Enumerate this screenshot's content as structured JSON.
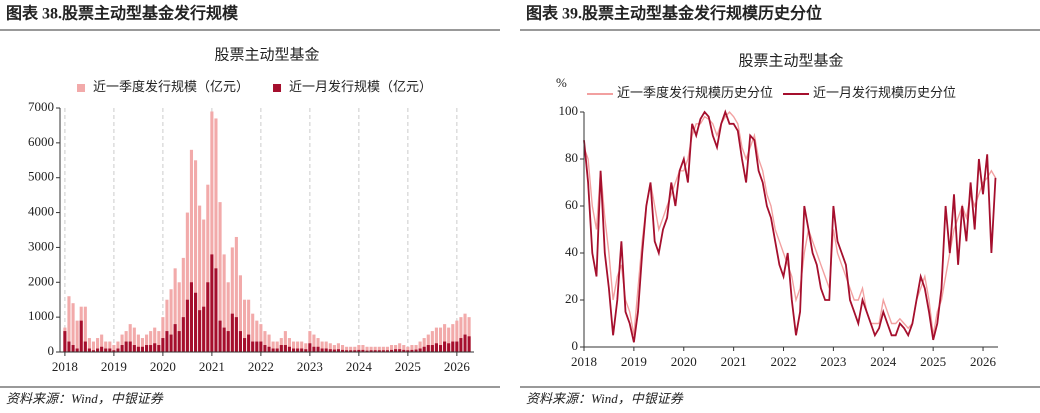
{
  "chart_data": [
    {
      "type": "bar",
      "figure_title": "图表 38.股票主动型基金发行规模",
      "title": "股票主动型基金",
      "source": "资料来源：Wind，中银证券",
      "x": [
        2018,
        2018.083,
        2018.167,
        2018.25,
        2018.333,
        2018.417,
        2018.5,
        2018.583,
        2018.667,
        2018.75,
        2018.833,
        2018.917,
        2019,
        2019.083,
        2019.167,
        2019.25,
        2019.333,
        2019.417,
        2019.5,
        2019.583,
        2019.667,
        2019.75,
        2019.833,
        2019.917,
        2020,
        2020.083,
        2020.167,
        2020.25,
        2020.333,
        2020.417,
        2020.5,
        2020.583,
        2020.667,
        2020.75,
        2020.833,
        2020.917,
        2021,
        2021.083,
        2021.167,
        2021.25,
        2021.333,
        2021.417,
        2021.5,
        2021.583,
        2021.667,
        2021.75,
        2021.833,
        2021.917,
        2022,
        2022.083,
        2022.167,
        2022.25,
        2022.333,
        2022.417,
        2022.5,
        2022.583,
        2022.667,
        2022.75,
        2022.833,
        2022.917,
        2023,
        2023.083,
        2023.167,
        2023.25,
        2023.333,
        2023.417,
        2023.5,
        2023.583,
        2023.667,
        2023.75,
        2023.833,
        2023.917,
        2024,
        2024.083,
        2024.167,
        2024.25,
        2024.333,
        2024.417,
        2024.5,
        2024.583,
        2024.667,
        2024.75,
        2024.833,
        2024.917,
        2025,
        2025.083,
        2025.167,
        2025.25,
        2025.333,
        2025.417,
        2025.5,
        2025.583,
        2025.667,
        2025.75,
        2025.833,
        2025.917,
        2026,
        2026.083,
        2026.167,
        2026.25
      ],
      "series": [
        {
          "name": "近一季度发行规模（亿元）",
          "color": "#f2aaaa",
          "values": [
            700,
            1600,
            1400,
            900,
            1300,
            1300,
            400,
            300,
            400,
            500,
            300,
            300,
            200,
            300,
            500,
            600,
            800,
            700,
            500,
            400,
            500,
            600,
            700,
            600,
            1000,
            1500,
            1800,
            2400,
            2000,
            2700,
            4000,
            5800,
            5500,
            4200,
            3800,
            4800,
            6900,
            6700,
            4300,
            2800,
            2000,
            3000,
            3300,
            2200,
            1500,
            1500,
            1100,
            900,
            800,
            600,
            500,
            300,
            300,
            400,
            600,
            400,
            300,
            300,
            300,
            250,
            600,
            500,
            400,
            300,
            300,
            250,
            200,
            250,
            200,
            150,
            150,
            150,
            200,
            200,
            150,
            150,
            150,
            150,
            150,
            150,
            200,
            200,
            250,
            200,
            150,
            200,
            200,
            300,
            400,
            500,
            600,
            700,
            700,
            800,
            700,
            800,
            900,
            1000,
            1100,
            1000
          ]
        },
        {
          "name": "近一月发行规模（亿元）",
          "color": "#a50f2d",
          "values": [
            600,
            300,
            200,
            100,
            900,
            300,
            100,
            50,
            100,
            150,
            100,
            100,
            50,
            100,
            200,
            300,
            300,
            200,
            150,
            150,
            200,
            200,
            250,
            200,
            400,
            600,
            500,
            800,
            600,
            1000,
            1500,
            2000,
            1700,
            1200,
            1300,
            2000,
            2800,
            2400,
            900,
            700,
            600,
            1100,
            1000,
            600,
            400,
            500,
            300,
            300,
            300,
            200,
            150,
            100,
            100,
            200,
            200,
            150,
            100,
            100,
            100,
            80,
            250,
            150,
            150,
            100,
            100,
            80,
            70,
            80,
            60,
            50,
            50,
            50,
            60,
            60,
            40,
            50,
            50,
            50,
            50,
            50,
            60,
            80,
            80,
            60,
            50,
            60,
            70,
            100,
            150,
            200,
            200,
            250,
            200,
            300,
            250,
            300,
            300,
            400,
            500,
            450
          ]
        }
      ],
      "xlim": [
        2017.9,
        2026.35
      ],
      "xticks": [
        2018,
        2019,
        2020,
        2021,
        2022,
        2023,
        2024,
        2025,
        2026
      ],
      "ylim": [
        0,
        7000
      ],
      "yticks": [
        0,
        1000,
        2000,
        3000,
        4000,
        5000,
        6000,
        7000
      ],
      "grid": true
    },
    {
      "type": "line",
      "figure_title": "图表 39.股票主动型基金发行规模历史分位",
      "title": "股票主动型基金",
      "source": "资料来源：Wind，中银证券",
      "ylabel": "%",
      "x": [
        2018,
        2018.083,
        2018.167,
        2018.25,
        2018.333,
        2018.417,
        2018.5,
        2018.583,
        2018.667,
        2018.75,
        2018.833,
        2018.917,
        2019,
        2019.083,
        2019.167,
        2019.25,
        2019.333,
        2019.417,
        2019.5,
        2019.583,
        2019.667,
        2019.75,
        2019.833,
        2019.917,
        2020,
        2020.083,
        2020.167,
        2020.25,
        2020.333,
        2020.417,
        2020.5,
        2020.583,
        2020.667,
        2020.75,
        2020.833,
        2020.917,
        2021,
        2021.083,
        2021.167,
        2021.25,
        2021.333,
        2021.417,
        2021.5,
        2021.583,
        2021.667,
        2021.75,
        2021.833,
        2021.917,
        2022,
        2022.083,
        2022.167,
        2022.25,
        2022.333,
        2022.417,
        2022.5,
        2022.583,
        2022.667,
        2022.75,
        2022.833,
        2022.917,
        2023,
        2023.083,
        2023.167,
        2023.25,
        2023.333,
        2023.417,
        2023.5,
        2023.583,
        2023.667,
        2023.75,
        2023.833,
        2023.917,
        2024,
        2024.083,
        2024.167,
        2024.25,
        2024.333,
        2024.417,
        2024.5,
        2024.583,
        2024.667,
        2024.75,
        2024.833,
        2024.917,
        2025,
        2025.083,
        2025.167,
        2025.25,
        2025.333,
        2025.417,
        2025.5,
        2025.583,
        2025.667,
        2025.75,
        2025.833,
        2025.917,
        2026,
        2026.083,
        2026.167,
        2026.25
      ],
      "series": [
        {
          "name": "近一季度发行规模历史分位",
          "color": "#f2a0a0",
          "values": [
            85,
            80,
            60,
            50,
            75,
            55,
            40,
            20,
            30,
            35,
            20,
            15,
            5,
            25,
            45,
            60,
            70,
            60,
            50,
            55,
            60,
            65,
            70,
            75,
            75,
            80,
            90,
            95,
            95,
            98,
            97,
            95,
            90,
            95,
            98,
            100,
            98,
            95,
            85,
            80,
            85,
            90,
            80,
            75,
            65,
            60,
            50,
            45,
            40,
            35,
            30,
            20,
            25,
            40,
            50,
            45,
            40,
            35,
            30,
            25,
            50,
            40,
            35,
            30,
            25,
            20,
            20,
            25,
            15,
            10,
            10,
            10,
            20,
            15,
            10,
            10,
            12,
            10,
            8,
            10,
            20,
            25,
            30,
            20,
            5,
            15,
            20,
            30,
            40,
            50,
            55,
            60,
            55,
            65,
            60,
            65,
            70,
            72,
            75,
            72
          ]
        },
        {
          "name": "近一月发行规模历史分位",
          "color": "#a50f2d",
          "values": [
            88,
            70,
            40,
            30,
            75,
            40,
            25,
            5,
            20,
            45,
            15,
            10,
            2,
            15,
            40,
            60,
            70,
            45,
            40,
            50,
            55,
            70,
            60,
            75,
            80,
            70,
            95,
            90,
            97,
            100,
            98,
            90,
            85,
            95,
            100,
            95,
            95,
            92,
            80,
            70,
            90,
            88,
            75,
            70,
            60,
            55,
            45,
            35,
            30,
            40,
            20,
            5,
            15,
            60,
            50,
            40,
            35,
            25,
            20,
            20,
            60,
            45,
            40,
            35,
            20,
            15,
            10,
            20,
            15,
            10,
            5,
            8,
            15,
            10,
            5,
            5,
            10,
            8,
            5,
            10,
            20,
            30,
            25,
            15,
            3,
            10,
            25,
            60,
            40,
            65,
            35,
            60,
            45,
            70,
            50,
            80,
            65,
            82,
            40,
            72
          ]
        }
      ],
      "xlim": [
        2018,
        2026.3
      ],
      "xticks": [
        2018,
        2019,
        2020,
        2021,
        2022,
        2023,
        2024,
        2025,
        2026
      ],
      "ylim": [
        0,
        100
      ],
      "yticks": [
        0,
        20,
        40,
        60,
        80,
        100
      ],
      "grid": false
    }
  ]
}
